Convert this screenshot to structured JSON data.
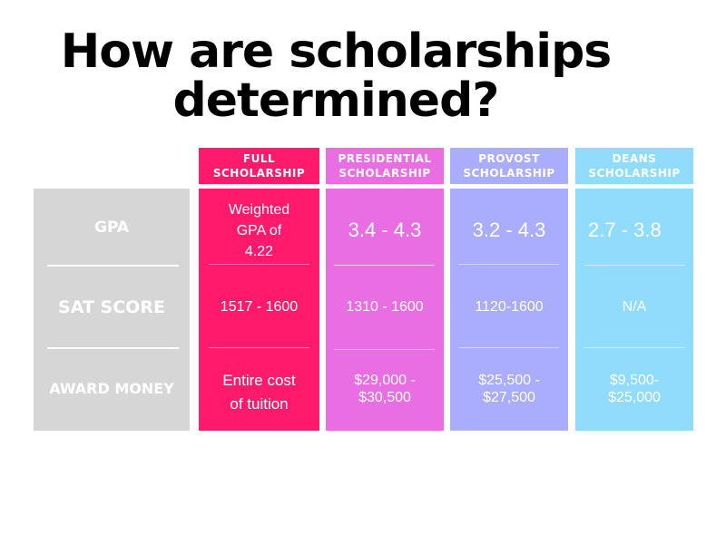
{
  "title": {
    "line1": "How are scholarships",
    "line2": "determined?"
  },
  "rows": {
    "gpa": "GPA",
    "sat": "SAT SCORE",
    "award": "AWARD MONEY"
  },
  "scholarships": [
    {
      "header_line1": "FULL",
      "header_line2": "SCHOLARSHIP",
      "color": "#ff1a6b",
      "gpa_line1": "Weighted",
      "gpa_line2": "GPA of",
      "gpa_line3": "4.22",
      "sat": "1517 - 1600",
      "award_line1": "Entire cost",
      "award_line2": "of tuition"
    },
    {
      "header_line1": "PRESIDENTIAL",
      "header_line2": "SCHOLARSHIP",
      "color": "#e96de3",
      "gpa": "3.4 - 4.3",
      "sat": "1310 - 1600",
      "award_line1": "$29,000 -",
      "award_line2": "$30,500"
    },
    {
      "header_line1": "PROVOST",
      "header_line2": "SCHOLARSHIP",
      "color": "#a9adfb",
      "gpa": "3.2 - 4.3",
      "sat": "1120-1600",
      "award_line1": "$25,500 -",
      "award_line2": "$27,500"
    },
    {
      "header_line1": "DEANS",
      "header_line2": "SCHOLARSHIP",
      "color": "#8fdcfd",
      "gpa": "2.7 - 3.8",
      "sat": "N/A",
      "award_line1": "$9,500-",
      "award_line2": "$25,000"
    }
  ],
  "label_column_color": "#d6d6d6"
}
